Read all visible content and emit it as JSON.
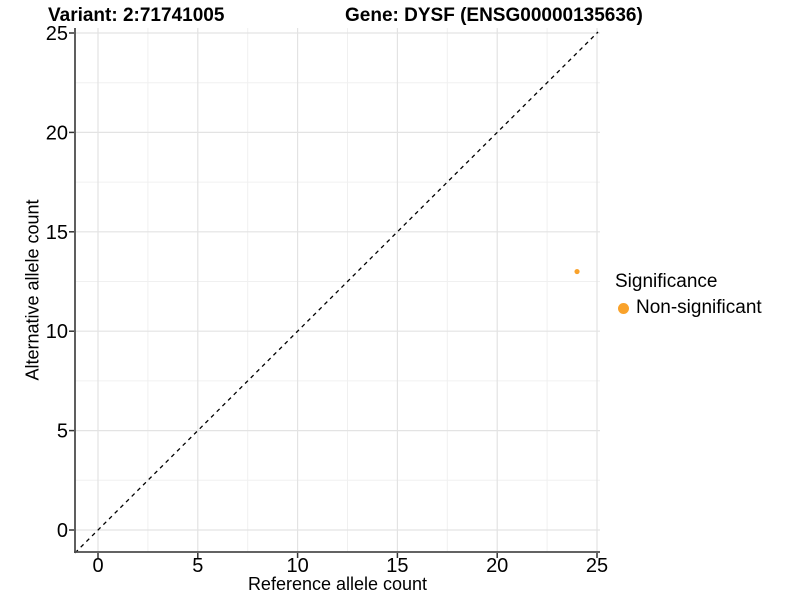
{
  "header": {
    "variant_title": "Variant: 2:71741005",
    "gene_title": "Gene: DYSF (ENSG00000135636)"
  },
  "axes": {
    "x_label": "Reference allele count",
    "y_label": "Alternative allele count"
  },
  "legend": {
    "title": "Significance",
    "items": [
      {
        "label": "Non-significant",
        "color": "#F9A22B"
      }
    ]
  },
  "colors": {
    "point_orange": "#F9A22B",
    "axis_line": "#4d4d4d",
    "tick_mark": "#333333",
    "grid_major": "#e3e3e3",
    "grid_minor": "#f0f0f0",
    "reference_line": "#000000",
    "text": "#000000"
  },
  "chart_data": {
    "type": "scatter",
    "title": "Variant: 2:71741005    Gene: DYSF (ENSG00000135636)",
    "xlabel": "Reference allele count",
    "ylabel": "Alternative allele count",
    "xlim": [
      -1.15,
      25.15
    ],
    "ylim": [
      -1.15,
      25.15
    ],
    "x_ticks": [
      0,
      5,
      10,
      15,
      20,
      25
    ],
    "y_ticks": [
      0,
      5,
      10,
      15,
      20,
      25
    ],
    "grid": "major and minor (minor at 2.5-unit midpoints)",
    "legend_position": "right",
    "series": [
      {
        "name": "Non-significant",
        "color": "#F9A22B",
        "points": [
          {
            "x": 24,
            "y": 13
          }
        ]
      }
    ],
    "reference_line": {
      "description": "y = x identity line",
      "style": "dashed",
      "color": "#000000",
      "from": [
        -1.15,
        -1.15
      ],
      "to": [
        25.05,
        25.05
      ]
    }
  }
}
